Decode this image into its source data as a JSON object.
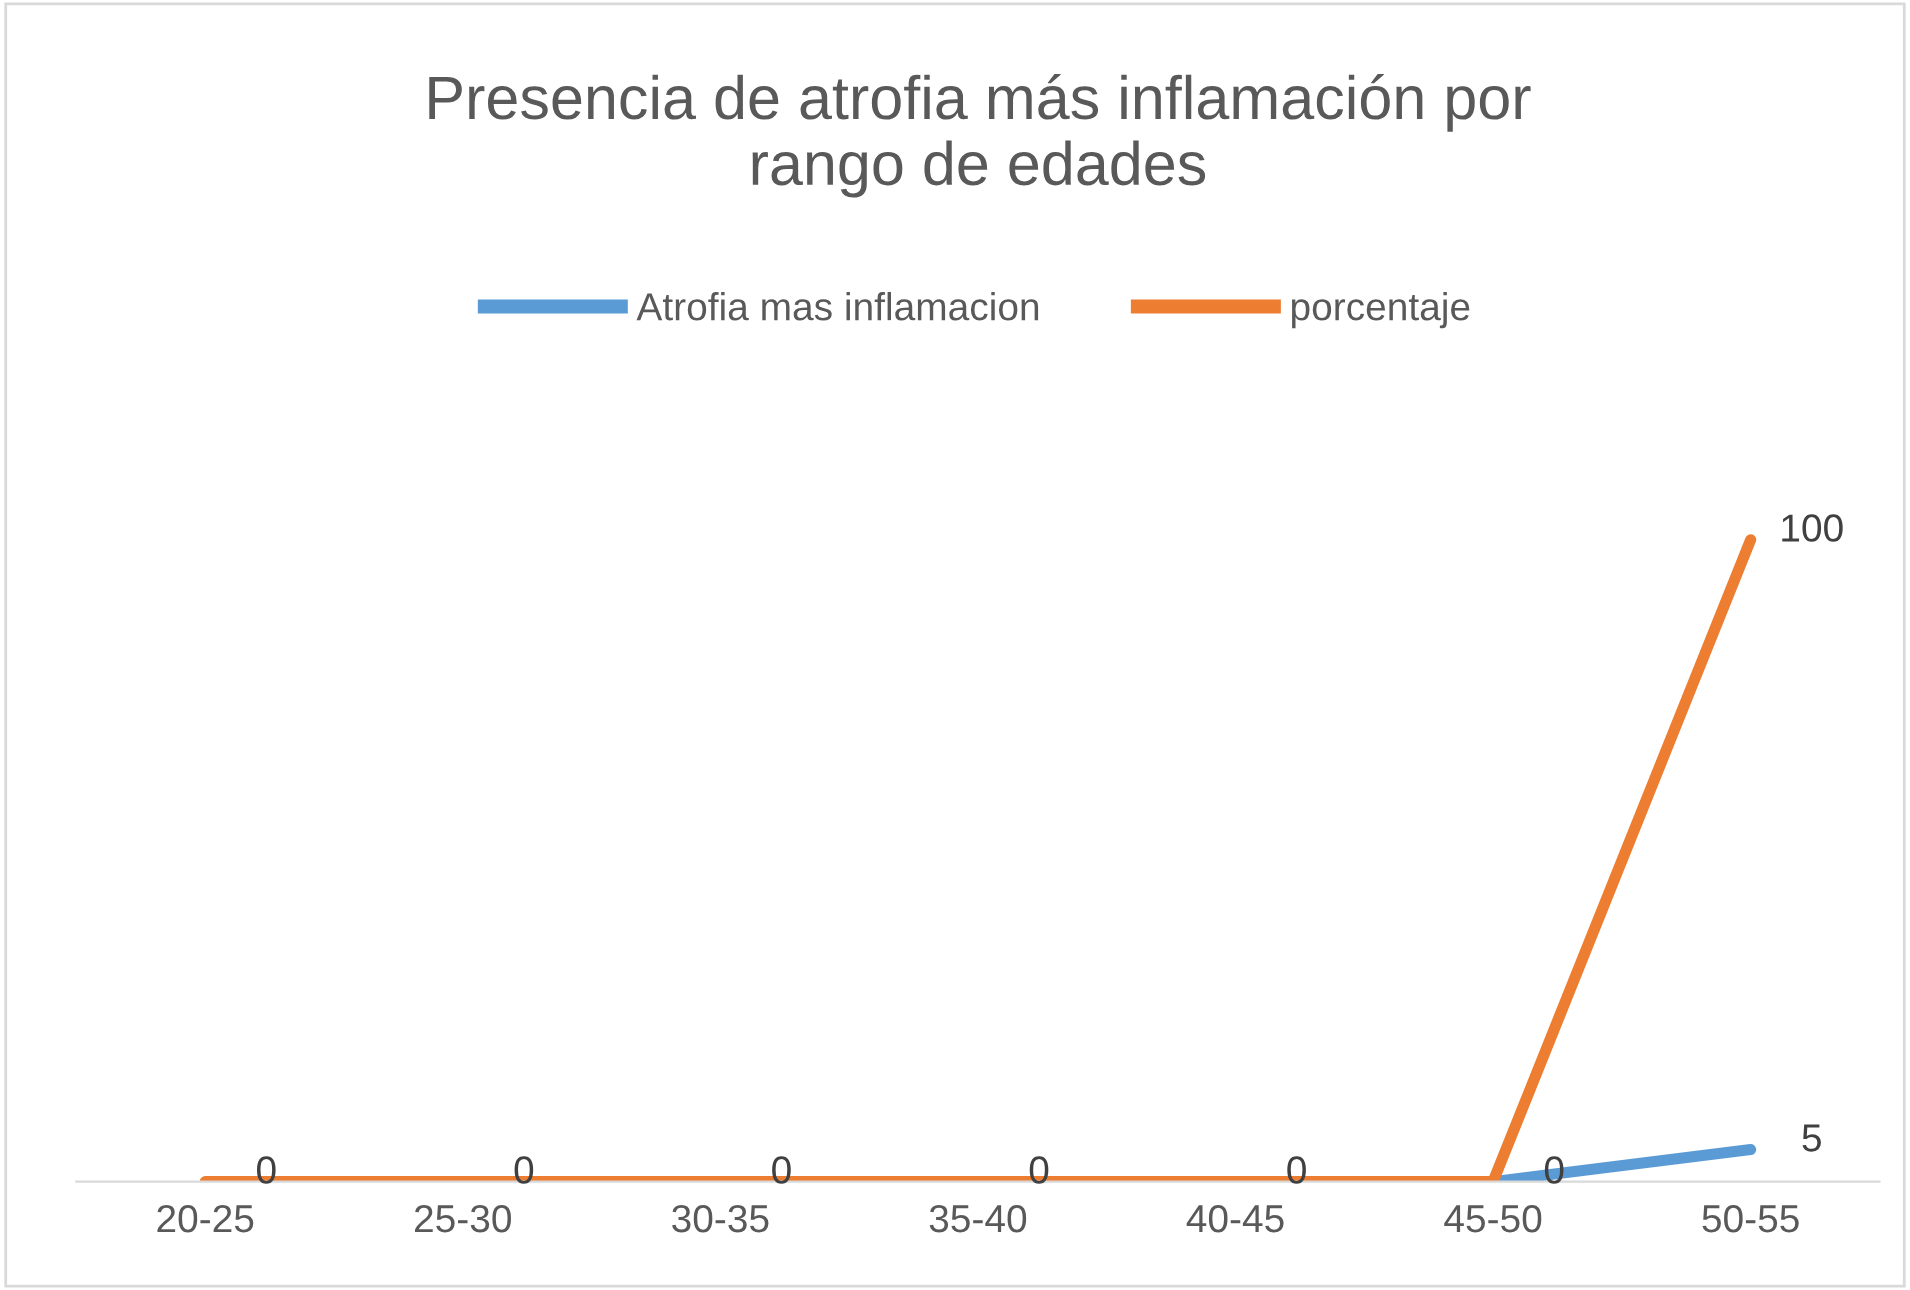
{
  "chart_data": {
    "type": "line",
    "title": "Presencia de atrofia más inflamación por\nrango de edades",
    "categories": [
      "20-25",
      "25-30",
      "30-35",
      "35-40",
      "40-45",
      "45-50",
      "50-55"
    ],
    "series": [
      {
        "name": "Atrofia mas inflamacion",
        "color": "#5b9bd5",
        "values": [
          null,
          null,
          null,
          null,
          null,
          0,
          5
        ],
        "value_labels": [
          null,
          null,
          null,
          null,
          null,
          "0",
          "5"
        ]
      },
      {
        "name": "porcentaje",
        "color": "#ed7d31",
        "values": [
          0,
          0,
          0,
          0,
          0,
          0,
          100
        ],
        "value_labels": [
          "0",
          "0",
          "0",
          "0",
          "0",
          null,
          "100"
        ]
      }
    ],
    "legend": "top",
    "tick_labels": "x"
  }
}
